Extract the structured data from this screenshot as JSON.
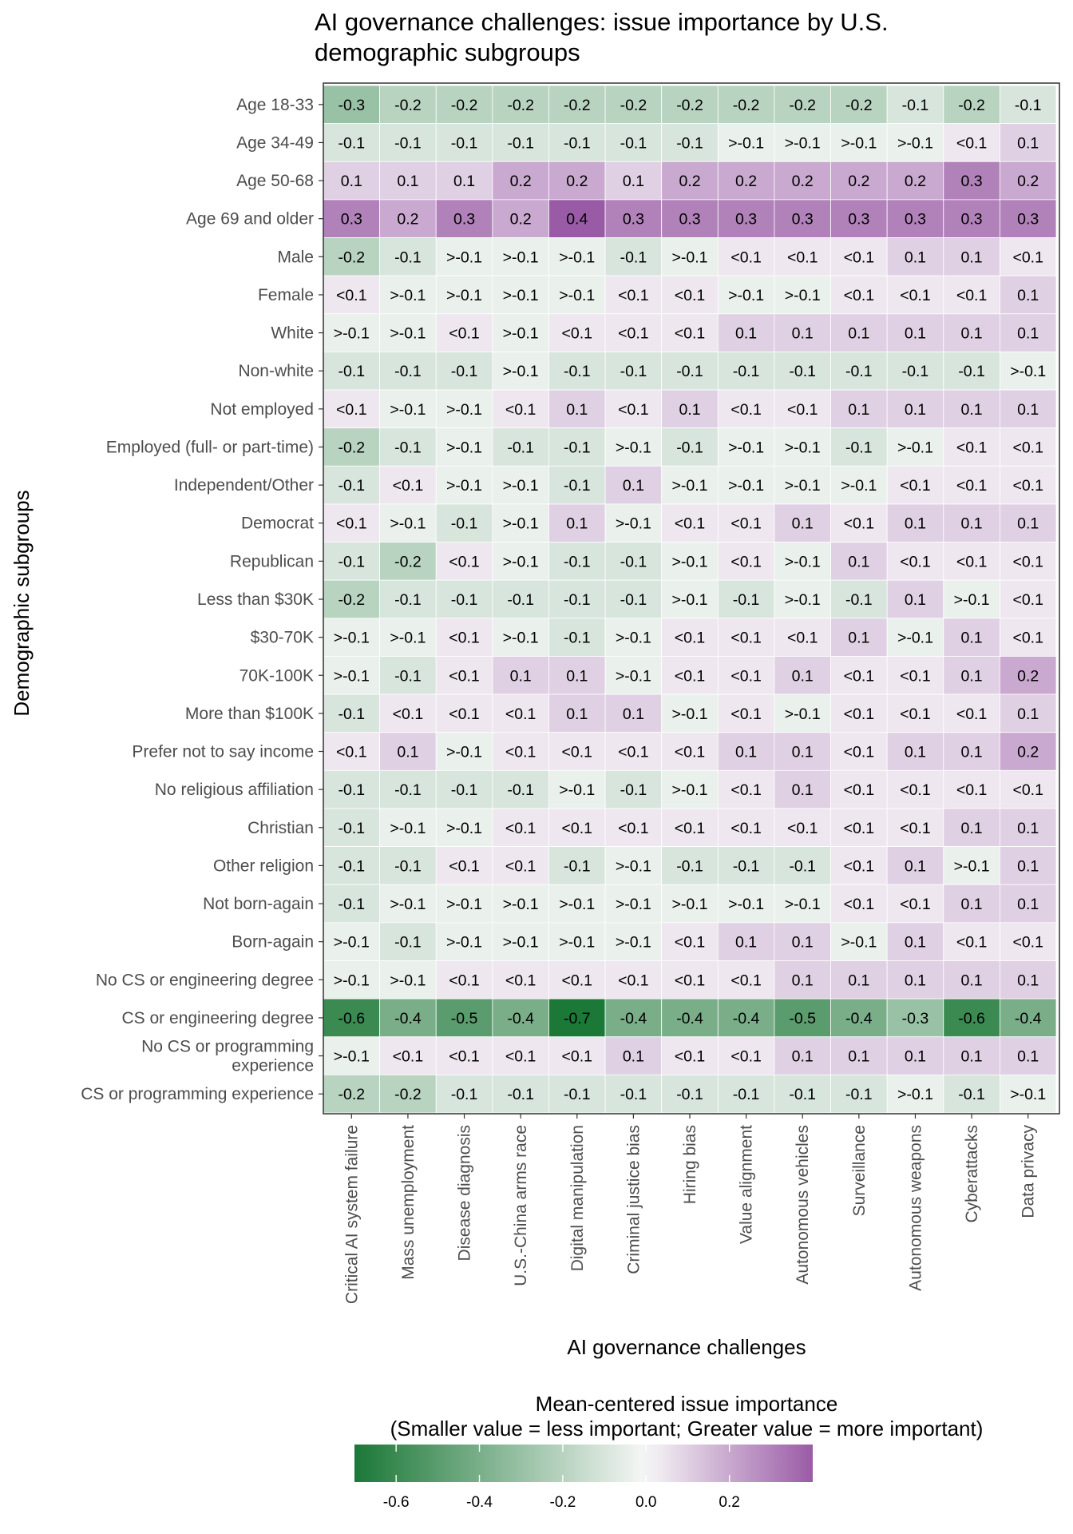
{
  "chart_data": {
    "type": "heatmap",
    "title": "AI governance challenges: issue importance by U.S. demographic subgroups",
    "title_lines": [
      "AI governance challenges: issue importance by U.S.",
      "demographic subgroups"
    ],
    "xlabel": "AI governance challenges",
    "ylabel": "Demographic subgroups",
    "grid": false,
    "columns": [
      "Critical AI system failure",
      "Mass unemployment",
      "Disease diagnosis",
      "U.S.-China arms race",
      "Digital manipulation",
      "Criminal justice bias",
      "Hiring bias",
      "Value alignment",
      "Autonomous vehicles",
      "Surveillance",
      "Autonomous weapons",
      "Cyberattacks",
      "Data privacy"
    ],
    "rows": [
      {
        "label": "Age 18-33",
        "values": [
          -0.3,
          -0.2,
          -0.2,
          -0.2,
          -0.2,
          -0.2,
          -0.2,
          -0.2,
          -0.2,
          -0.2,
          -0.1,
          -0.2,
          -0.1
        ],
        "cell_labels": [
          "-0.3",
          "-0.2",
          "-0.2",
          "-0.2",
          "-0.2",
          "-0.2",
          "-0.2",
          "-0.2",
          "-0.2",
          "-0.2",
          "-0.1",
          "-0.2",
          "-0.1"
        ]
      },
      {
        "label": "Age 34-49",
        "values": [
          -0.1,
          -0.1,
          -0.1,
          -0.1,
          -0.1,
          -0.1,
          -0.1,
          -0.04,
          -0.04,
          -0.04,
          -0.04,
          0.04,
          0.1
        ],
        "cell_labels": [
          "-0.1",
          "-0.1",
          "-0.1",
          "-0.1",
          "-0.1",
          "-0.1",
          "-0.1",
          ">-0.1",
          ">-0.1",
          ">-0.1",
          ">-0.1",
          "<0.1",
          "0.1"
        ]
      },
      {
        "label": "Age 50-68",
        "values": [
          0.1,
          0.1,
          0.1,
          0.2,
          0.2,
          0.1,
          0.2,
          0.2,
          0.2,
          0.2,
          0.2,
          0.3,
          0.2
        ],
        "cell_labels": [
          "0.1",
          "0.1",
          "0.1",
          "0.2",
          "0.2",
          "0.1",
          "0.2",
          "0.2",
          "0.2",
          "0.2",
          "0.2",
          "0.3",
          "0.2"
        ]
      },
      {
        "label": "Age 69 and older",
        "values": [
          0.3,
          0.2,
          0.3,
          0.2,
          0.4,
          0.3,
          0.3,
          0.3,
          0.3,
          0.3,
          0.3,
          0.3,
          0.3
        ],
        "cell_labels": [
          "0.3",
          "0.2",
          "0.3",
          "0.2",
          "0.4",
          "0.3",
          "0.3",
          "0.3",
          "0.3",
          "0.3",
          "0.3",
          "0.3",
          "0.3"
        ]
      },
      {
        "label": "Male",
        "values": [
          -0.2,
          -0.1,
          -0.04,
          -0.04,
          -0.04,
          -0.1,
          -0.04,
          0.04,
          0.04,
          0.04,
          0.1,
          0.1,
          0.04
        ],
        "cell_labels": [
          "-0.2",
          "-0.1",
          ">-0.1",
          ">-0.1",
          ">-0.1",
          "-0.1",
          ">-0.1",
          "<0.1",
          "<0.1",
          "<0.1",
          "0.1",
          "0.1",
          "<0.1"
        ]
      },
      {
        "label": "Female",
        "values": [
          0.04,
          -0.04,
          -0.04,
          -0.04,
          -0.04,
          0.04,
          0.04,
          -0.04,
          -0.04,
          0.04,
          0.04,
          0.04,
          0.1
        ],
        "cell_labels": [
          "<0.1",
          ">-0.1",
          ">-0.1",
          ">-0.1",
          ">-0.1",
          "<0.1",
          "<0.1",
          ">-0.1",
          ">-0.1",
          "<0.1",
          "<0.1",
          "<0.1",
          "0.1"
        ]
      },
      {
        "label": "White",
        "values": [
          -0.04,
          -0.04,
          0.04,
          -0.04,
          0.04,
          0.04,
          0.04,
          0.1,
          0.1,
          0.1,
          0.1,
          0.1,
          0.1
        ],
        "cell_labels": [
          ">-0.1",
          ">-0.1",
          "<0.1",
          ">-0.1",
          "<0.1",
          "<0.1",
          "<0.1",
          "0.1",
          "0.1",
          "0.1",
          "0.1",
          "0.1",
          "0.1"
        ]
      },
      {
        "label": "Non-white",
        "values": [
          -0.1,
          -0.1,
          -0.1,
          -0.04,
          -0.1,
          -0.1,
          -0.1,
          -0.1,
          -0.1,
          -0.1,
          -0.1,
          -0.1,
          -0.04
        ],
        "cell_labels": [
          "-0.1",
          "-0.1",
          "-0.1",
          ">-0.1",
          "-0.1",
          "-0.1",
          "-0.1",
          "-0.1",
          "-0.1",
          "-0.1",
          "-0.1",
          "-0.1",
          ">-0.1"
        ]
      },
      {
        "label": "Not employed",
        "values": [
          0.04,
          -0.04,
          -0.04,
          0.04,
          0.1,
          0.04,
          0.1,
          0.04,
          0.04,
          0.1,
          0.1,
          0.1,
          0.1
        ],
        "cell_labels": [
          "<0.1",
          ">-0.1",
          ">-0.1",
          "<0.1",
          "0.1",
          "<0.1",
          "0.1",
          "<0.1",
          "<0.1",
          "0.1",
          "0.1",
          "0.1",
          "0.1"
        ]
      },
      {
        "label": "Employed (full- or part-time)",
        "values": [
          -0.2,
          -0.1,
          -0.04,
          -0.1,
          -0.1,
          -0.04,
          -0.1,
          -0.04,
          -0.04,
          -0.1,
          -0.04,
          0.04,
          0.04
        ],
        "cell_labels": [
          "-0.2",
          "-0.1",
          ">-0.1",
          "-0.1",
          "-0.1",
          ">-0.1",
          "-0.1",
          ">-0.1",
          ">-0.1",
          "-0.1",
          ">-0.1",
          "<0.1",
          "<0.1"
        ]
      },
      {
        "label": "Independent/Other",
        "values": [
          -0.1,
          0.04,
          -0.04,
          -0.04,
          -0.1,
          0.1,
          -0.04,
          -0.04,
          -0.04,
          -0.04,
          0.04,
          0.04,
          0.04
        ],
        "cell_labels": [
          "-0.1",
          "<0.1",
          ">-0.1",
          ">-0.1",
          "-0.1",
          "0.1",
          ">-0.1",
          ">-0.1",
          ">-0.1",
          ">-0.1",
          "<0.1",
          "<0.1",
          "<0.1"
        ]
      },
      {
        "label": "Democrat",
        "values": [
          0.04,
          -0.04,
          -0.1,
          -0.04,
          0.1,
          -0.04,
          0.04,
          0.04,
          0.1,
          0.04,
          0.1,
          0.1,
          0.1
        ],
        "cell_labels": [
          "<0.1",
          ">-0.1",
          "-0.1",
          ">-0.1",
          "0.1",
          ">-0.1",
          "<0.1",
          "<0.1",
          "0.1",
          "<0.1",
          "0.1",
          "0.1",
          "0.1"
        ]
      },
      {
        "label": "Republican",
        "values": [
          -0.1,
          -0.2,
          0.04,
          -0.04,
          -0.1,
          -0.1,
          -0.04,
          0.04,
          -0.04,
          0.1,
          0.04,
          0.04,
          0.04
        ],
        "cell_labels": [
          "-0.1",
          "-0.2",
          "<0.1",
          ">-0.1",
          "-0.1",
          "-0.1",
          ">-0.1",
          "<0.1",
          ">-0.1",
          "0.1",
          "<0.1",
          "<0.1",
          "<0.1"
        ]
      },
      {
        "label": "Less than $30K",
        "values": [
          -0.2,
          -0.1,
          -0.1,
          -0.1,
          -0.1,
          -0.1,
          -0.04,
          -0.1,
          -0.04,
          -0.1,
          0.1,
          -0.04,
          0.04
        ],
        "cell_labels": [
          "-0.2",
          "-0.1",
          "-0.1",
          "-0.1",
          "-0.1",
          "-0.1",
          ">-0.1",
          "-0.1",
          ">-0.1",
          "-0.1",
          "0.1",
          ">-0.1",
          "<0.1"
        ]
      },
      {
        "label": "$30-70K",
        "values": [
          -0.04,
          -0.04,
          0.04,
          -0.04,
          -0.1,
          -0.04,
          0.04,
          0.04,
          0.04,
          0.1,
          -0.04,
          0.1,
          0.04
        ],
        "cell_labels": [
          ">-0.1",
          ">-0.1",
          "<0.1",
          ">-0.1",
          "-0.1",
          ">-0.1",
          "<0.1",
          "<0.1",
          "<0.1",
          "0.1",
          ">-0.1",
          "0.1",
          "<0.1"
        ]
      },
      {
        "label": "70K-100K",
        "values": [
          -0.04,
          -0.1,
          0.04,
          0.1,
          0.1,
          -0.04,
          0.04,
          0.04,
          0.1,
          0.04,
          0.04,
          0.1,
          0.2
        ],
        "cell_labels": [
          ">-0.1",
          "-0.1",
          "<0.1",
          "0.1",
          "0.1",
          ">-0.1",
          "<0.1",
          "<0.1",
          "0.1",
          "<0.1",
          "<0.1",
          "0.1",
          "0.2"
        ]
      },
      {
        "label": "More than $100K",
        "values": [
          -0.1,
          0.04,
          0.04,
          0.04,
          0.1,
          0.1,
          -0.04,
          0.04,
          -0.04,
          0.04,
          0.04,
          0.04,
          0.1
        ],
        "cell_labels": [
          "-0.1",
          "<0.1",
          "<0.1",
          "<0.1",
          "0.1",
          "0.1",
          ">-0.1",
          "<0.1",
          ">-0.1",
          "<0.1",
          "<0.1",
          "<0.1",
          "0.1"
        ]
      },
      {
        "label": "Prefer not to say income",
        "values": [
          0.04,
          0.1,
          -0.04,
          0.04,
          0.04,
          0.04,
          0.04,
          0.1,
          0.1,
          0.04,
          0.1,
          0.1,
          0.2
        ],
        "cell_labels": [
          "<0.1",
          "0.1",
          ">-0.1",
          "<0.1",
          "<0.1",
          "<0.1",
          "<0.1",
          "0.1",
          "0.1",
          "<0.1",
          "0.1",
          "0.1",
          "0.2"
        ]
      },
      {
        "label": "No religious affiliation",
        "values": [
          -0.1,
          -0.1,
          -0.1,
          -0.1,
          -0.04,
          -0.1,
          -0.04,
          0.04,
          0.1,
          0.04,
          0.04,
          0.04,
          0.04
        ],
        "cell_labels": [
          "-0.1",
          "-0.1",
          "-0.1",
          "-0.1",
          ">-0.1",
          "-0.1",
          ">-0.1",
          "<0.1",
          "0.1",
          "<0.1",
          "<0.1",
          "<0.1",
          "<0.1"
        ]
      },
      {
        "label": "Christian",
        "values": [
          -0.1,
          -0.04,
          -0.04,
          0.04,
          0.04,
          0.04,
          0.04,
          0.04,
          0.04,
          0.04,
          0.04,
          0.1,
          0.1
        ],
        "cell_labels": [
          "-0.1",
          ">-0.1",
          ">-0.1",
          "<0.1",
          "<0.1",
          "<0.1",
          "<0.1",
          "<0.1",
          "<0.1",
          "<0.1",
          "<0.1",
          "0.1",
          "0.1"
        ]
      },
      {
        "label": "Other religion",
        "values": [
          -0.1,
          -0.1,
          0.04,
          0.04,
          -0.1,
          -0.04,
          -0.1,
          -0.1,
          -0.1,
          0.04,
          0.1,
          -0.04,
          0.1
        ],
        "cell_labels": [
          "-0.1",
          "-0.1",
          "<0.1",
          "<0.1",
          "-0.1",
          ">-0.1",
          "-0.1",
          "-0.1",
          "-0.1",
          "<0.1",
          "0.1",
          ">-0.1",
          "0.1"
        ]
      },
      {
        "label": "Not born-again",
        "values": [
          -0.1,
          -0.04,
          -0.04,
          -0.04,
          -0.04,
          -0.04,
          -0.04,
          -0.04,
          -0.04,
          0.04,
          0.04,
          0.1,
          0.1
        ],
        "cell_labels": [
          "-0.1",
          ">-0.1",
          ">-0.1",
          ">-0.1",
          ">-0.1",
          ">-0.1",
          ">-0.1",
          ">-0.1",
          ">-0.1",
          "<0.1",
          "<0.1",
          "0.1",
          "0.1"
        ]
      },
      {
        "label": "Born-again",
        "values": [
          -0.04,
          -0.1,
          -0.04,
          -0.04,
          -0.04,
          -0.04,
          0.04,
          0.1,
          0.1,
          -0.04,
          0.1,
          0.04,
          0.04
        ],
        "cell_labels": [
          ">-0.1",
          "-0.1",
          ">-0.1",
          ">-0.1",
          ">-0.1",
          ">-0.1",
          "<0.1",
          "0.1",
          "0.1",
          ">-0.1",
          "0.1",
          "<0.1",
          "<0.1"
        ]
      },
      {
        "label": "No CS or engineering degree",
        "values": [
          -0.04,
          -0.04,
          0.04,
          0.04,
          0.04,
          0.04,
          0.04,
          0.04,
          0.1,
          0.1,
          0.1,
          0.1,
          0.1
        ],
        "cell_labels": [
          ">-0.1",
          ">-0.1",
          "<0.1",
          "<0.1",
          "<0.1",
          "<0.1",
          "<0.1",
          "<0.1",
          "0.1",
          "0.1",
          "0.1",
          "0.1",
          "0.1"
        ]
      },
      {
        "label": "CS or engineering degree",
        "values": [
          -0.6,
          -0.4,
          -0.5,
          -0.4,
          -0.7,
          -0.4,
          -0.4,
          -0.4,
          -0.5,
          -0.4,
          -0.3,
          -0.6,
          -0.4
        ],
        "cell_labels": [
          "-0.6",
          "-0.4",
          "-0.5",
          "-0.4",
          "-0.7",
          "-0.4",
          "-0.4",
          "-0.4",
          "-0.5",
          "-0.4",
          "-0.3",
          "-0.6",
          "-0.4"
        ]
      },
      {
        "label": "No CS or programming experience",
        "label_lines": [
          "No CS or programming",
          "experience"
        ],
        "values": [
          -0.04,
          0.04,
          0.04,
          0.04,
          0.04,
          0.1,
          0.04,
          0.04,
          0.1,
          0.1,
          0.1,
          0.1,
          0.1
        ],
        "cell_labels": [
          ">-0.1",
          "<0.1",
          "<0.1",
          "<0.1",
          "<0.1",
          "0.1",
          "<0.1",
          "<0.1",
          "0.1",
          "0.1",
          "0.1",
          "0.1",
          "0.1"
        ]
      },
      {
        "label": "CS or programming experience",
        "values": [
          -0.2,
          -0.2,
          -0.1,
          -0.1,
          -0.1,
          -0.1,
          -0.1,
          -0.1,
          -0.1,
          -0.1,
          -0.04,
          -0.1,
          -0.04
        ],
        "cell_labels": [
          "-0.2",
          "-0.2",
          "-0.1",
          "-0.1",
          "-0.1",
          "-0.1",
          "-0.1",
          "-0.1",
          "-0.1",
          "-0.1",
          ">-0.1",
          "-0.1",
          ">-0.1"
        ]
      }
    ],
    "legend": {
      "title_lines": [
        "Mean-centered issue importance",
        "(Smaller value = less important; Greater value = more important)"
      ],
      "range": [
        -0.7,
        0.4
      ],
      "ticks": [
        -0.6,
        -0.4,
        -0.2,
        0.0,
        0.2
      ],
      "tick_labels": [
        "-0.6",
        "-0.4",
        "-0.2",
        "0.0",
        "0.2"
      ],
      "placement": "bottom"
    },
    "colors": {
      "low": "#1b7837",
      "mid": "#f7f7f7",
      "high": "#9a5ba6",
      "panel_border": "#333333",
      "cell_border": "#ffffff"
    }
  }
}
